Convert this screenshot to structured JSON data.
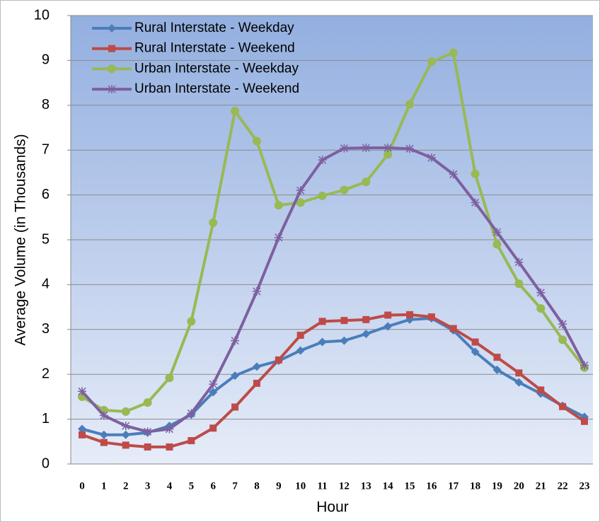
{
  "chart_data": {
    "type": "line",
    "x_label": "Hour",
    "y_label": "Average Volume (in Thousands)",
    "categories": [
      0,
      1,
      2,
      3,
      4,
      5,
      6,
      7,
      8,
      9,
      10,
      11,
      12,
      13,
      14,
      15,
      16,
      17,
      18,
      19,
      20,
      21,
      22,
      23
    ],
    "ylim": [
      0,
      10
    ],
    "yticks": [
      0,
      1,
      2,
      3,
      4,
      5,
      6,
      7,
      8,
      9,
      10
    ],
    "grid": true,
    "legend": "top-left",
    "series": [
      {
        "name": "Rural Interstate - Weekday",
        "color": "#4a7ebb",
        "marker": "diamond",
        "values": [
          0.78,
          0.65,
          0.65,
          0.7,
          0.85,
          1.1,
          1.6,
          1.97,
          2.17,
          2.3,
          2.53,
          2.72,
          2.75,
          2.9,
          3.07,
          3.22,
          3.25,
          2.98,
          2.5,
          2.1,
          1.82,
          1.57,
          1.3,
          1.05
        ]
      },
      {
        "name": "Rural Interstate - Weekend",
        "color": "#be4b48",
        "marker": "square",
        "values": [
          0.65,
          0.48,
          0.42,
          0.38,
          0.38,
          0.52,
          0.8,
          1.27,
          1.8,
          2.32,
          2.87,
          3.18,
          3.2,
          3.22,
          3.32,
          3.33,
          3.28,
          3.02,
          2.72,
          2.38,
          2.03,
          1.65,
          1.28,
          0.95
        ]
      },
      {
        "name": "Urban Interstate - Weekday",
        "color": "#98b954",
        "marker": "circle",
        "values": [
          1.5,
          1.2,
          1.17,
          1.37,
          1.92,
          3.18,
          5.38,
          7.87,
          7.2,
          5.77,
          5.83,
          5.98,
          6.11,
          6.29,
          6.9,
          8.02,
          8.97,
          9.17,
          6.47,
          4.9,
          4.02,
          3.47,
          2.77,
          2.15
        ]
      },
      {
        "name": "Urban Interstate - Weekend",
        "color": "#7d60a0",
        "marker": "star",
        "values": [
          1.62,
          1.08,
          0.85,
          0.72,
          0.78,
          1.13,
          1.78,
          2.75,
          3.85,
          5.05,
          6.1,
          6.78,
          7.04,
          7.05,
          7.05,
          7.03,
          6.83,
          6.46,
          5.83,
          5.17,
          4.5,
          3.82,
          3.12,
          2.2
        ]
      }
    ]
  }
}
